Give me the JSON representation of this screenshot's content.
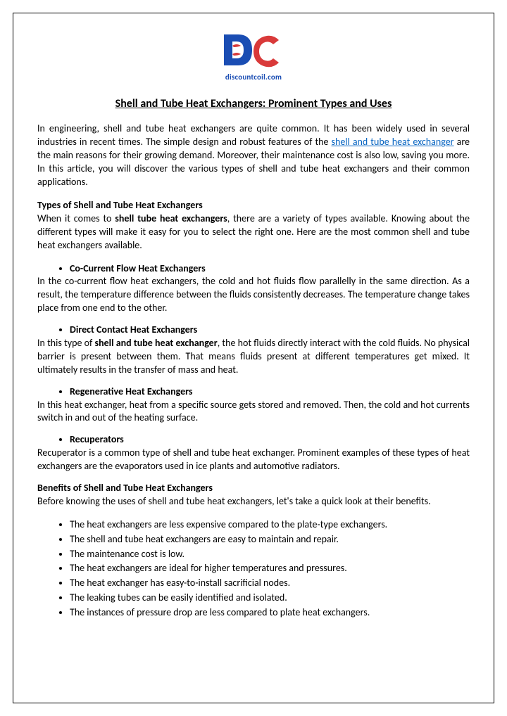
{
  "logo": {
    "site_text": "discountcoil.com",
    "text_color": "#1a4db3"
  },
  "title": "Shell and Tube Heat Exchangers: Prominent Types and Uses",
  "intro": {
    "part1": "In engineering, shell and tube heat exchangers are quite common. It has been widely used in several industries in recent times. The simple design and robust features of the ",
    "link_text": "shell and tube heat exchanger",
    "part2": " are the main reasons for their growing demand. Moreover, their maintenance cost is also low, saving you more. In this article, you will discover the various types of shell and tube heat exchangers and their common applications."
  },
  "types_heading": "Types of Shell and Tube Heat Exchangers",
  "types_intro": {
    "part1": "When it comes to ",
    "bold": "shell tube heat exchangers",
    "part2": ", there are a variety of types available. Knowing about the different types will make it easy for you to select the right one. Here are the most common shell and tube heat exchangers available."
  },
  "types": [
    {
      "name": "Co-Current Flow Heat Exchangers",
      "desc_pre": "In the co-current flow heat exchangers, the cold and hot fluids flow parallelly in the same direction. As a result, the temperature difference between the fluids consistently decreases. The temperature change takes place from one end to the other.",
      "bold_inline": "",
      "desc_post": ""
    },
    {
      "name": "Direct Contact Heat Exchangers",
      "desc_pre": "In this type of ",
      "bold_inline": "shell and tube heat exchanger",
      "desc_post": ", the hot fluids directly interact with the cold fluids. No physical barrier is present between them. That means fluids present at different temperatures get mixed. It ultimately results in the transfer of mass and heat."
    },
    {
      "name": "Regenerative Heat Exchangers",
      "desc_pre": "In this heat exchanger, heat from a specific source gets stored and removed. Then, the cold and hot currents switch in and out of the heating surface.",
      "bold_inline": "",
      "desc_post": ""
    },
    {
      "name": "Recuperators",
      "desc_pre": "Recuperator is a common type of shell and tube heat exchanger. Prominent examples of these types of heat exchangers are the evaporators used in ice plants and automotive radiators.",
      "bold_inline": "",
      "desc_post": ""
    }
  ],
  "benefits_heading": "Benefits of Shell and Tube Heat Exchangers",
  "benefits_intro": "Before knowing the uses of shell and tube heat exchangers, let's take a quick look at their benefits.",
  "benefits": [
    "The heat exchangers are less expensive compared to the plate-type exchangers.",
    "The shell and tube heat exchangers are easy to maintain and repair.",
    "The maintenance cost is low.",
    "The heat exchangers are ideal for higher temperatures and pressures.",
    "The heat exchanger has easy-to-install sacrificial nodes.",
    "The leaking tubes can be easily identified and isolated.",
    "The instances of pressure drop are less compared to plate heat exchangers."
  ]
}
